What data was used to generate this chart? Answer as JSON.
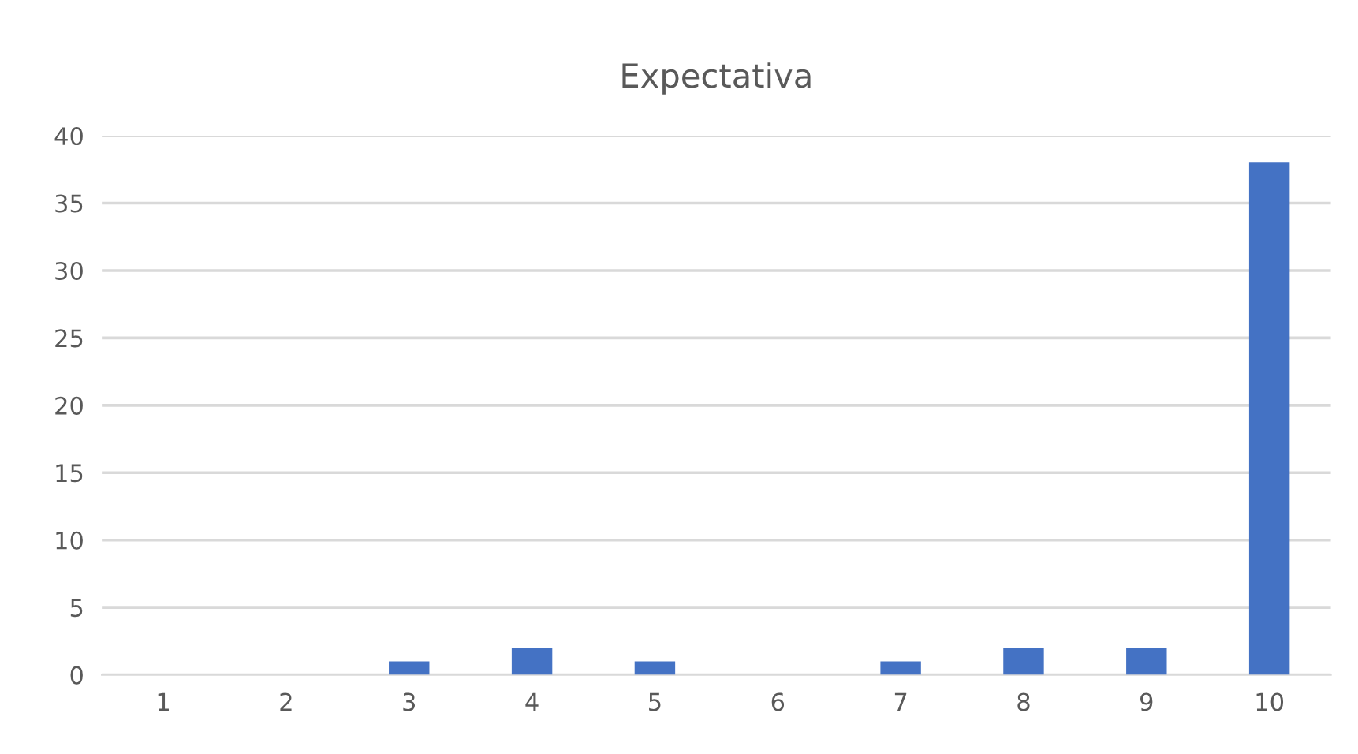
{
  "chart_data": {
    "type": "bar",
    "title": "Expectativa",
    "categories": [
      "1",
      "2",
      "3",
      "4",
      "5",
      "6",
      "7",
      "8",
      "9",
      "10"
    ],
    "values": [
      0,
      0,
      1,
      2,
      1,
      0,
      1,
      2,
      2,
      38
    ],
    "color": "#4472c4",
    "ylim": [
      0,
      40
    ],
    "yticks": [
      0,
      5,
      10,
      15,
      20,
      25,
      30,
      35,
      40
    ],
    "grid": "y"
  }
}
